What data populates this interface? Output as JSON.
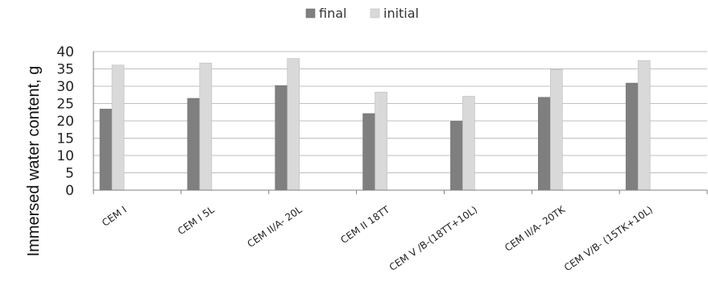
{
  "chart_data": {
    "type": "bar",
    "categories": [
      "CEM I",
      "CEM I 5L",
      "CEM II/A- 20L",
      "CEM II 18TT",
      "CEM V /B-(18TT+10L)",
      "CEM II/A- 20TK",
      "CEM V/B- (15TK+10L)"
    ],
    "series": [
      {
        "name": "final",
        "color": "#7f7f7f",
        "values": [
          23.4,
          26.5,
          30.2,
          22.1,
          19.9,
          26.8,
          30.9
        ]
      },
      {
        "name": "initial",
        "color": "#d9d9d9",
        "values": [
          36.1,
          36.7,
          38.0,
          28.3,
          27.1,
          34.8,
          37.4
        ]
      }
    ],
    "ylabel": "Immersed water content, g",
    "xlabel": "",
    "title": "",
    "ylim": [
      0,
      40
    ],
    "yticks": [
      0,
      5,
      10,
      15,
      20,
      25,
      30,
      35,
      40
    ],
    "grid": true,
    "legend": "top-center"
  }
}
